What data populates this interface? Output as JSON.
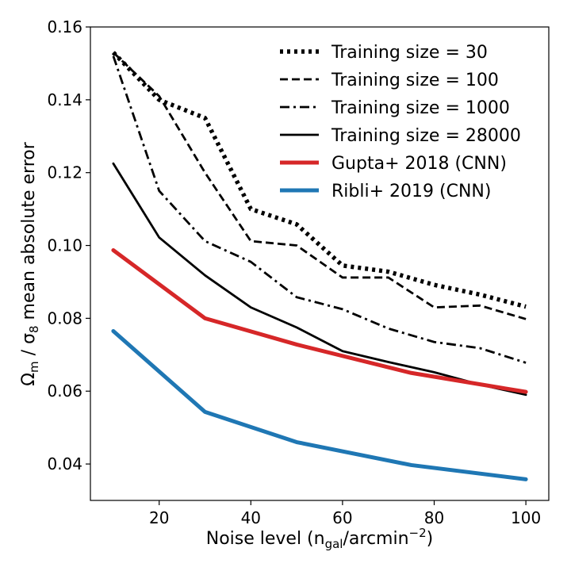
{
  "chart_data": {
    "type": "line",
    "xlabel": {
      "main": "Noise level (n",
      "sub": "gal",
      "mid": "/arcmin",
      "sup": "−2",
      "end": ")"
    },
    "ylabel": {
      "a": "Ω",
      "a_sub": "m",
      "b": " / σ",
      "b_sub": "8",
      "c": " mean absolute error"
    },
    "xlim": [
      5,
      105
    ],
    "ylim": [
      0.03,
      0.16
    ],
    "x_ticks": [
      20,
      40,
      60,
      80,
      100
    ],
    "y_ticks": [
      0.04,
      0.06,
      0.08,
      0.1,
      0.12,
      0.14,
      0.16
    ],
    "y_tick_labels": [
      "0.04",
      "0.06",
      "0.08",
      "0.10",
      "0.12",
      "0.14",
      "0.16"
    ],
    "legend_position": "top-right",
    "grid": false,
    "series": [
      {
        "name": "Training size = 30",
        "style": "dotted",
        "color": "#000000",
        "x": [
          10,
          20,
          30,
          40,
          50,
          60,
          70,
          80,
          90,
          100
        ],
        "y": [
          0.153,
          0.14,
          0.135,
          0.11,
          0.1058,
          0.0945,
          0.0928,
          0.0892,
          0.0865,
          0.0832
        ]
      },
      {
        "name": "Training size = 100",
        "style": "dashed",
        "color": "#000000",
        "x": [
          10,
          20,
          30,
          40,
          50,
          60,
          70,
          80,
          90,
          100
        ],
        "y": [
          0.153,
          0.141,
          0.12,
          0.1012,
          0.1,
          0.0912,
          0.0912,
          0.083,
          0.0835,
          0.0798
        ]
      },
      {
        "name": "Training size = 1000",
        "style": "dashdot",
        "color": "#000000",
        "x": [
          10,
          20,
          30,
          40,
          50,
          60,
          70,
          80,
          90,
          100
        ],
        "y": [
          0.152,
          0.115,
          0.1012,
          0.0955,
          0.0858,
          0.0825,
          0.0772,
          0.0735,
          0.0718,
          0.0678
        ]
      },
      {
        "name": "Training size = 28000",
        "style": "solid",
        "color": "#000000",
        "x": [
          10,
          20,
          30,
          40,
          50,
          60,
          70,
          80,
          90,
          100
        ],
        "y": [
          0.1225,
          0.1022,
          0.0918,
          0.083,
          0.0775,
          0.071,
          0.068,
          0.0652,
          0.0618,
          0.059
        ]
      },
      {
        "name": "Gupta+ 2018 (CNN)",
        "style": "solid-thick",
        "color": "#d62728",
        "x": [
          10,
          30,
          50,
          75,
          100
        ],
        "y": [
          0.0987,
          0.08,
          0.0728,
          0.065,
          0.0598
        ]
      },
      {
        "name": "Ribli+ 2019 (CNN)",
        "style": "solid-thick",
        "color": "#1f77b4",
        "x": [
          10,
          30,
          50,
          75,
          100
        ],
        "y": [
          0.0765,
          0.0543,
          0.046,
          0.0397,
          0.0358
        ]
      }
    ]
  }
}
